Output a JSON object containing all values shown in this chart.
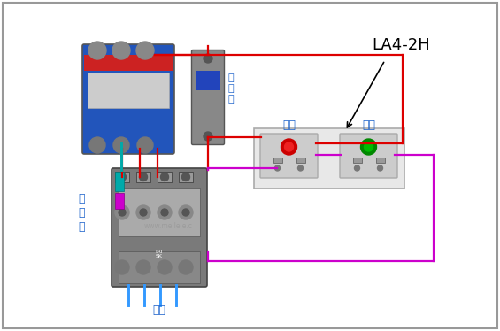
{
  "bg_color": "#ffffff",
  "border_color": "#999999",
  "fig_width": 5.65,
  "fig_height": 3.74,
  "dpi": 100,
  "label_LA4": "LA4-2H",
  "label_stop": "停止",
  "label_start": "启动",
  "label_breaker": "断\n路\n器",
  "label_contactor": "接\n触\n器",
  "label_load": "负载",
  "label_watermark": "www.meilele.c",
  "wire_red": "#dd0000",
  "wire_magenta": "#cc00cc",
  "wire_cyan": "#00aaaa",
  "wire_blue": "#3399ff",
  "text_blue": "#2266cc"
}
